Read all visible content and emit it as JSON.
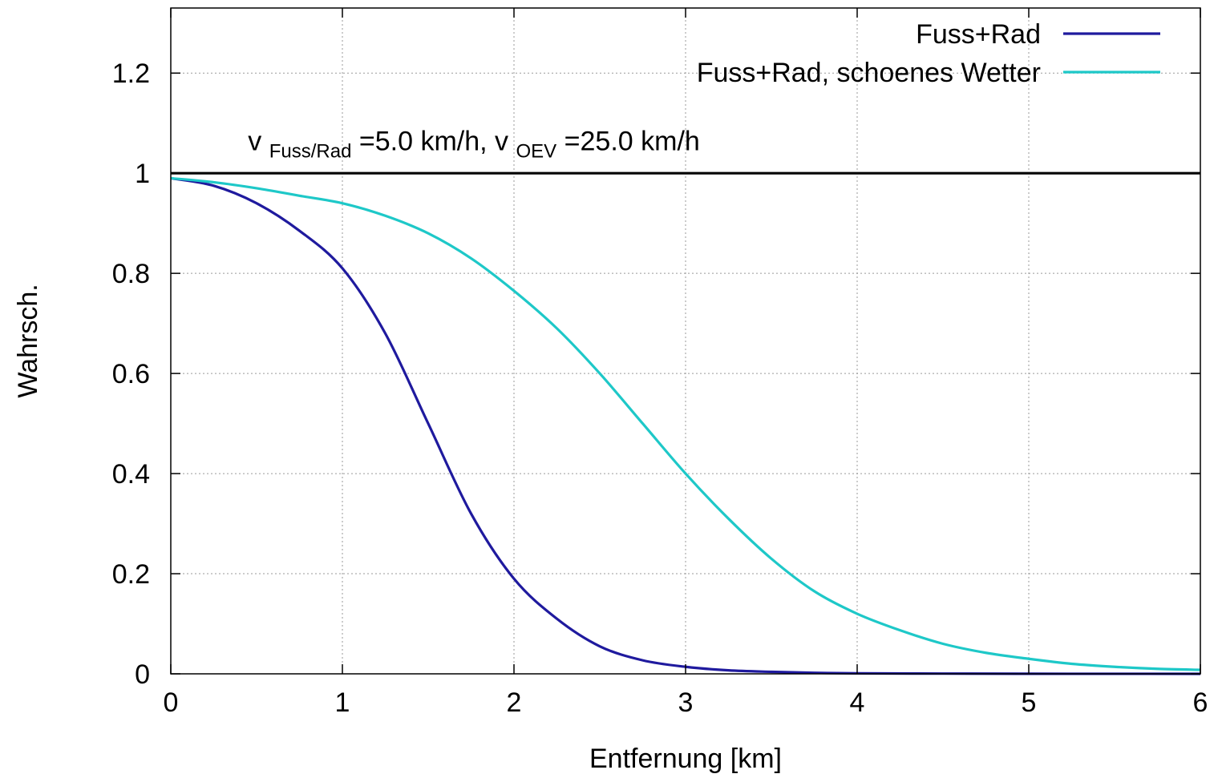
{
  "chart_data": {
    "type": "line",
    "xlabel": "Entfernung [km]",
    "ylabel": "Wahrsch.",
    "xlim": [
      0,
      6
    ],
    "ylim": [
      0,
      1.33
    ],
    "x_ticks": [
      0,
      1,
      2,
      3,
      4,
      5,
      6
    ],
    "y_ticks": [
      0,
      0.2,
      0.4,
      0.6,
      0.8,
      1,
      1.2
    ],
    "x_tick_labels": [
      "0",
      "1",
      "2",
      "3",
      "4",
      "5",
      "6"
    ],
    "y_tick_labels": [
      "0",
      "0.2",
      "0.4",
      "0.6",
      "0.8",
      "1",
      "1.2"
    ],
    "grid": true,
    "legend_position": "top-right",
    "series": [
      {
        "name": "Fuss+Rad",
        "color": "#1f1a9e",
        "x": [
          0,
          0.25,
          0.5,
          0.75,
          1.0,
          1.25,
          1.5,
          1.75,
          2.0,
          2.25,
          2.5,
          2.75,
          3.0,
          3.25,
          3.5,
          3.75,
          4.0,
          4.5,
          5.0,
          5.5,
          6.0
        ],
        "y": [
          0.99,
          0.975,
          0.94,
          0.885,
          0.81,
          0.68,
          0.5,
          0.32,
          0.19,
          0.11,
          0.055,
          0.027,
          0.014,
          0.007,
          0.004,
          0.002,
          0.001,
          0.0005,
          0.0002,
          0.0001,
          0.0
        ]
      },
      {
        "name": "Fuss+Rad, schoenes Wetter",
        "color": "#1ec8c8",
        "x": [
          0,
          0.25,
          0.5,
          0.75,
          1.0,
          1.25,
          1.5,
          1.75,
          2.0,
          2.25,
          2.5,
          2.75,
          3.0,
          3.25,
          3.5,
          3.75,
          4.0,
          4.25,
          4.5,
          4.75,
          5.0,
          5.25,
          5.5,
          5.75,
          6.0
        ],
        "y": [
          0.99,
          0.982,
          0.97,
          0.955,
          0.94,
          0.915,
          0.88,
          0.83,
          0.765,
          0.69,
          0.6,
          0.5,
          0.4,
          0.31,
          0.23,
          0.165,
          0.12,
          0.087,
          0.06,
          0.042,
          0.03,
          0.02,
          0.014,
          0.01,
          0.008
        ]
      }
    ],
    "reference_line": {
      "y": 1,
      "color": "#000000"
    },
    "annotation": {
      "v1": "v",
      "sub1": "Fuss/Rad",
      "mid": "=5.0 km/h, v",
      "sub2": "OEV",
      "tail": "=25.0 km/h",
      "x": 0.45,
      "y": 1.065
    }
  }
}
